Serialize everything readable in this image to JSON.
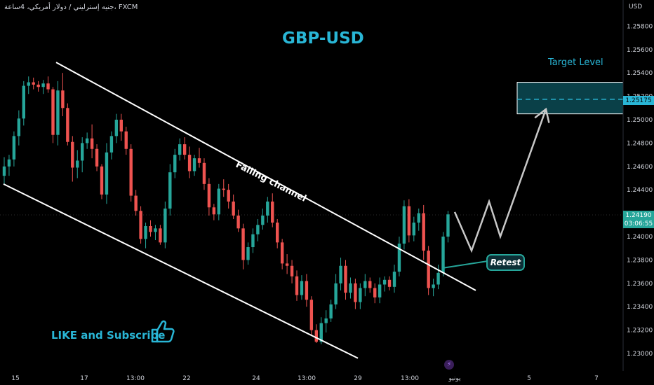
{
  "header": {
    "symbol_text": "جنيه إسترليني / دولار أمريكي، 4ساعة، FXCM",
    "currency": "USD"
  },
  "annotations": {
    "title": "GBP-USD",
    "target_label": "Target Level",
    "channel_label": "Falling channel",
    "retest_label": "Retest",
    "like_text": "LIKE and Subscribe",
    "bolt_icon": "lightning-icon",
    "thumb_icon": "thumbs-up-icon"
  },
  "price_tags": {
    "target_price": "1.25175",
    "current_price": "1.24190",
    "countdown": "03:06:55"
  },
  "colors": {
    "bull": "#26a69a",
    "bear": "#ef5350",
    "accent": "#29b6d6",
    "target_zone": "#0e5660"
  },
  "chart_data": {
    "type": "candlestick",
    "title": "GBP-USD",
    "y_axis": {
      "unit": "USD",
      "ticks": [
        "1.25800",
        "1.25600",
        "1.25400",
        "1.25200",
        "1.25000",
        "1.24800",
        "1.24600",
        "1.24400",
        "1.24200",
        "1.24000",
        "1.23800",
        "1.23600",
        "1.23400",
        "1.23200",
        "1.23000"
      ],
      "range": [
        1.2293,
        1.2593
      ]
    },
    "x_axis": {
      "ticks": [
        "15",
        "17",
        "13:00",
        "22",
        "24",
        "13:00",
        "29",
        "13:00",
        "يونيو",
        "5",
        "7"
      ]
    },
    "target_zone": {
      "low": 1.2505,
      "high": 1.2532,
      "level": 1.25175
    },
    "current_price": 1.2419,
    "channel": {
      "upper": [
        [
          80,
          1.2549
        ],
        [
          678,
          1.2354
        ]
      ],
      "lower": [
        [
          5,
          1.2445
        ],
        [
          510,
          1.2296
        ]
      ]
    },
    "projection": [
      [
        648,
        1.2421
      ],
      [
        672,
        1.2388
      ],
      [
        697,
        1.243
      ],
      [
        713,
        1.24
      ],
      [
        778,
        1.2509
      ]
    ],
    "ohlc": [
      [
        1.2452,
        1.2468,
        1.2444,
        1.246
      ],
      [
        1.246,
        1.247,
        1.2452,
        1.2466
      ],
      [
        1.2466,
        1.249,
        1.246,
        1.2486
      ],
      [
        1.2486,
        1.2508,
        1.2478,
        1.2501
      ],
      [
        1.2501,
        1.2533,
        1.2495,
        1.2529
      ],
      [
        1.2529,
        1.2537,
        1.2522,
        1.2532
      ],
      [
        1.2532,
        1.2536,
        1.2526,
        1.253
      ],
      [
        1.253,
        1.2533,
        1.2524,
        1.2528
      ],
      [
        1.2528,
        1.2534,
        1.2522,
        1.2531
      ],
      [
        1.2531,
        1.2537,
        1.2523,
        1.2526
      ],
      [
        1.2526,
        1.2528,
        1.248,
        1.2487
      ],
      [
        1.2487,
        1.2533,
        1.2478,
        1.2525
      ],
      [
        1.2525,
        1.254,
        1.2503,
        1.251
      ],
      [
        1.251,
        1.2514,
        1.2478,
        1.2481
      ],
      [
        1.2481,
        1.2486,
        1.2447,
        1.2459
      ],
      [
        1.2459,
        1.2474,
        1.245,
        1.2465
      ],
      [
        1.2465,
        1.2485,
        1.2455,
        1.248
      ],
      [
        1.248,
        1.2489,
        1.2475,
        1.2484
      ],
      [
        1.2484,
        1.2496,
        1.2467,
        1.2475
      ],
      [
        1.2475,
        1.2479,
        1.2456,
        1.246
      ],
      [
        1.246,
        1.2462,
        1.2432,
        1.2436
      ],
      [
        1.2436,
        1.248,
        1.2428,
        1.2472
      ],
      [
        1.2472,
        1.249,
        1.2466,
        1.2486
      ],
      [
        1.2486,
        1.2505,
        1.248,
        1.25
      ],
      [
        1.25,
        1.2505,
        1.2482,
        1.249
      ],
      [
        1.249,
        1.2494,
        1.247,
        1.2475
      ],
      [
        1.2475,
        1.2479,
        1.243,
        1.2435
      ],
      [
        1.2435,
        1.244,
        1.2418,
        1.2422
      ],
      [
        1.2422,
        1.2426,
        1.2394,
        1.2398
      ],
      [
        1.2398,
        1.2412,
        1.239,
        1.2409
      ],
      [
        1.2409,
        1.2414,
        1.24,
        1.2404
      ],
      [
        1.2404,
        1.241,
        1.2397,
        1.2407
      ],
      [
        1.2407,
        1.241,
        1.2393,
        1.2395
      ],
      [
        1.2395,
        1.243,
        1.239,
        1.2424
      ],
      [
        1.2424,
        1.2462,
        1.2418,
        1.2455
      ],
      [
        1.2455,
        1.2475,
        1.245,
        1.247
      ],
      [
        1.247,
        1.2484,
        1.2465,
        1.2479
      ],
      [
        1.2479,
        1.2485,
        1.2466,
        1.247
      ],
      [
        1.247,
        1.2477,
        1.245,
        1.2456
      ],
      [
        1.2456,
        1.247,
        1.2452,
        1.2467
      ],
      [
        1.2467,
        1.2476,
        1.2459,
        1.2463
      ],
      [
        1.2463,
        1.2467,
        1.244,
        1.2445
      ],
      [
        1.2445,
        1.245,
        1.2418,
        1.2425
      ],
      [
        1.2425,
        1.2428,
        1.2414,
        1.2419
      ],
      [
        1.2419,
        1.2445,
        1.2414,
        1.2441
      ],
      [
        1.2441,
        1.2449,
        1.2434,
        1.244
      ],
      [
        1.244,
        1.2445,
        1.2424,
        1.243
      ],
      [
        1.243,
        1.2436,
        1.2415,
        1.2418
      ],
      [
        1.2418,
        1.2423,
        1.2404,
        1.2407
      ],
      [
        1.2407,
        1.2411,
        1.2372,
        1.238
      ],
      [
        1.238,
        1.2395,
        1.2376,
        1.2391
      ],
      [
        1.2391,
        1.2407,
        1.2386,
        1.2402
      ],
      [
        1.2402,
        1.2415,
        1.2396,
        1.241
      ],
      [
        1.241,
        1.2424,
        1.2406,
        1.2418
      ],
      [
        1.2418,
        1.2434,
        1.2412,
        1.243
      ],
      [
        1.243,
        1.2437,
        1.2408,
        1.2412
      ],
      [
        1.2412,
        1.2415,
        1.239,
        1.2395
      ],
      [
        1.2395,
        1.2398,
        1.2372,
        1.2377
      ],
      [
        1.2377,
        1.2385,
        1.2368,
        1.2375
      ],
      [
        1.2375,
        1.238,
        1.236,
        1.2366
      ],
      [
        1.2366,
        1.2371,
        1.2345,
        1.235
      ],
      [
        1.235,
        1.2367,
        1.2346,
        1.2362
      ],
      [
        1.2362,
        1.2368,
        1.234,
        1.2346
      ],
      [
        1.2346,
        1.2349,
        1.2315,
        1.232
      ],
      [
        1.232,
        1.2325,
        1.2309,
        1.231
      ],
      [
        1.231,
        1.2331,
        1.2308,
        1.2326
      ],
      [
        1.2326,
        1.2337,
        1.2318,
        1.233
      ],
      [
        1.233,
        1.2346,
        1.2327,
        1.2342
      ],
      [
        1.2342,
        1.2368,
        1.2338,
        1.236
      ],
      [
        1.236,
        1.2382,
        1.2354,
        1.2375
      ],
      [
        1.2375,
        1.238,
        1.2346,
        1.2352
      ],
      [
        1.2352,
        1.2365,
        1.2347,
        1.236
      ],
      [
        1.236,
        1.2364,
        1.2338,
        1.2344
      ],
      [
        1.2344,
        1.236,
        1.2338,
        1.2356
      ],
      [
        1.2356,
        1.2368,
        1.2349,
        1.2362
      ],
      [
        1.2362,
        1.2365,
        1.2352,
        1.2356
      ],
      [
        1.2356,
        1.236,
        1.2343,
        1.2348
      ],
      [
        1.2348,
        1.2365,
        1.2343,
        1.2359
      ],
      [
        1.2359,
        1.2366,
        1.2353,
        1.2363
      ],
      [
        1.2363,
        1.2366,
        1.2354,
        1.2357
      ],
      [
        1.2357,
        1.2376,
        1.2352,
        1.237
      ],
      [
        1.237,
        1.24,
        1.2366,
        1.2394
      ],
      [
        1.2394,
        1.2431,
        1.2389,
        1.2426
      ],
      [
        1.2426,
        1.2432,
        1.2395,
        1.2401
      ],
      [
        1.2401,
        1.2417,
        1.2396,
        1.2412
      ],
      [
        1.2412,
        1.2424,
        1.2405,
        1.242
      ],
      [
        1.242,
        1.2427,
        1.238,
        1.2388
      ],
      [
        1.2388,
        1.2392,
        1.235,
        1.2356
      ],
      [
        1.2356,
        1.2364,
        1.2349,
        1.2359
      ],
      [
        1.2359,
        1.2376,
        1.2355,
        1.2369
      ],
      [
        1.2369,
        1.2404,
        1.2366,
        1.24
      ],
      [
        1.24,
        1.2422,
        1.2395,
        1.2419
      ]
    ]
  }
}
